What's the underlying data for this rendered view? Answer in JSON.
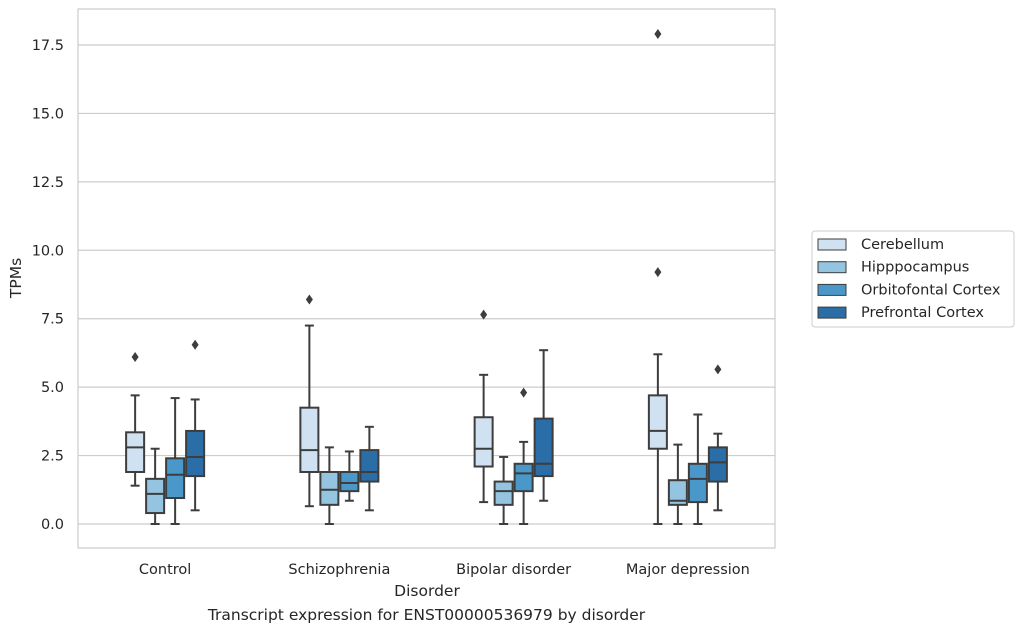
{
  "chart_data": {
    "type": "boxplot",
    "xlabel": "Disorder",
    "ylabel": "TPMs",
    "caption": "Transcript expression for ENST00000536979 by disorder",
    "ylim": [
      -0.85,
      18.8
    ],
    "yticks": [
      0.0,
      2.5,
      5.0,
      7.5,
      10.0,
      12.5,
      15.0,
      17.5
    ],
    "ytick_labels": [
      "0.0",
      "2.5",
      "5.0",
      "7.5",
      "10.0",
      "12.5",
      "15.0",
      "17.5"
    ],
    "grid": "horizontal",
    "legend_position": "right",
    "categories": [
      "Control",
      "Schizophrenia",
      "Bipolar disorder",
      "Major depression"
    ],
    "series": [
      {
        "name": "Cerebellum",
        "color": "#d0e1f2",
        "boxes": [
          {
            "whislo": 1.4,
            "q1": 1.9,
            "med": 2.8,
            "q3": 3.35,
            "whishi": 4.7,
            "fliers": [
              6.1
            ]
          },
          {
            "whislo": 0.65,
            "q1": 1.9,
            "med": 2.7,
            "q3": 4.25,
            "whishi": 7.25,
            "fliers": [
              8.2
            ]
          },
          {
            "whislo": 0.8,
            "q1": 2.1,
            "med": 2.75,
            "q3": 3.9,
            "whishi": 5.45,
            "fliers": [
              7.65
            ]
          },
          {
            "whislo": 0.0,
            "q1": 2.75,
            "med": 3.4,
            "q3": 4.7,
            "whishi": 6.2,
            "fliers": [
              9.2,
              17.9
            ]
          }
        ]
      },
      {
        "name": "Hipppocampus",
        "color": "#94c4df",
        "boxes": [
          {
            "whislo": 0.0,
            "q1": 0.4,
            "med": 1.1,
            "q3": 1.65,
            "whishi": 2.75,
            "fliers": []
          },
          {
            "whislo": 0.0,
            "q1": 0.7,
            "med": 1.25,
            "q3": 1.9,
            "whishi": 2.8,
            "fliers": []
          },
          {
            "whislo": 0.0,
            "q1": 0.7,
            "med": 1.2,
            "q3": 1.55,
            "whishi": 2.45,
            "fliers": []
          },
          {
            "whislo": 0.0,
            "q1": 0.7,
            "med": 0.85,
            "q3": 1.6,
            "whishi": 2.9,
            "fliers": []
          }
        ]
      },
      {
        "name": "Orbitofontal Cortex",
        "color": "#4a98c9",
        "boxes": [
          {
            "whislo": 0.0,
            "q1": 0.95,
            "med": 1.8,
            "q3": 2.4,
            "whishi": 4.6,
            "fliers": []
          },
          {
            "whislo": 0.85,
            "q1": 1.2,
            "med": 1.5,
            "q3": 1.9,
            "whishi": 2.65,
            "fliers": []
          },
          {
            "whislo": 0.0,
            "q1": 1.2,
            "med": 1.85,
            "q3": 2.2,
            "whishi": 3.0,
            "fliers": [
              4.8
            ]
          },
          {
            "whislo": 0.0,
            "q1": 0.8,
            "med": 1.65,
            "q3": 2.2,
            "whishi": 4.0,
            "fliers": []
          }
        ]
      },
      {
        "name": "Prefrontal Cortex",
        "color": "#2b6da7",
        "boxes": [
          {
            "whislo": 0.5,
            "q1": 1.75,
            "med": 2.45,
            "q3": 3.4,
            "whishi": 4.55,
            "fliers": [
              6.55
            ]
          },
          {
            "whislo": 0.5,
            "q1": 1.55,
            "med": 1.9,
            "q3": 2.7,
            "whishi": 3.55,
            "fliers": []
          },
          {
            "whislo": 0.85,
            "q1": 1.75,
            "med": 2.2,
            "q3": 3.85,
            "whishi": 6.35,
            "fliers": []
          },
          {
            "whislo": 0.5,
            "q1": 1.55,
            "med": 2.25,
            "q3": 2.8,
            "whishi": 3.3,
            "fliers": [
              5.65
            ]
          }
        ]
      }
    ]
  }
}
